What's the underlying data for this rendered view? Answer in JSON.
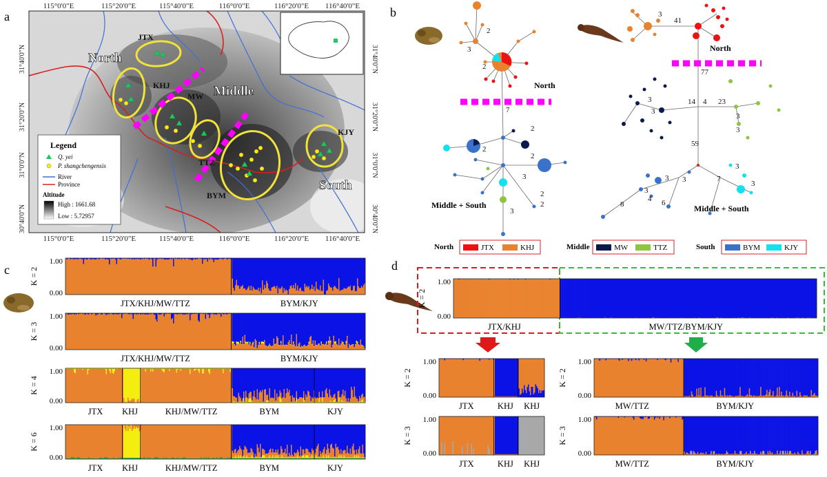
{
  "panels": {
    "a": "a",
    "b": "b",
    "c": "c",
    "d": "d"
  },
  "map": {
    "lon_ticks": [
      "115°0'0\"E",
      "115°20'0\"E",
      "115°40'0\"E",
      "116°0'0\"E",
      "116°20'0\"E",
      "116°40'0\"E"
    ],
    "lat_ticks": [
      "31°40'0\"N",
      "31°20'0\"N",
      "31°0'0\"N",
      "30°40'0\"N"
    ],
    "regions": {
      "north": "North",
      "middle": "Middle",
      "south": "South"
    },
    "sites": [
      "JTX",
      "KHJ",
      "MW",
      "TTZ",
      "BYM",
      "KJY"
    ],
    "legend": {
      "title": "Legend",
      "q_yei": "Q. yei",
      "p_shang": "P. shangchengensis",
      "river": "River",
      "province": "Province",
      "altitude": "Altitude",
      "high": "High : 1661.68",
      "low": "Low : 5.72957"
    },
    "colors": {
      "q_yei": "#22c55e",
      "p_shang": "#ffee00",
      "river": "#3d6fd6",
      "province": "#d62020",
      "ellipse": "#f2e33a",
      "barrier": "#ff00ff"
    }
  },
  "networks": {
    "frog": {
      "north": "North",
      "middle_south": "Middle + South",
      "steps": [
        "7",
        "3",
        "2",
        "2",
        "2",
        "2",
        "3",
        "2",
        "2",
        "3",
        "2"
      ]
    },
    "newt": {
      "north": "North",
      "middle_south": "Middle + South",
      "steps": [
        "41",
        "3",
        "77",
        "14",
        "4",
        "23",
        "3",
        "3",
        "3",
        "3",
        "59",
        "3",
        "3",
        "7",
        "3",
        "3",
        "4",
        "6",
        "3",
        "8"
      ]
    }
  },
  "pop_legend": {
    "groups": [
      {
        "region": "North",
        "items": [
          {
            "name": "JTX",
            "color": "#ee1111"
          },
          {
            "name": "KHJ",
            "color": "#e8822f"
          }
        ]
      },
      {
        "region": "Middle",
        "items": [
          {
            "name": "MW",
            "color": "#0b1a4d"
          },
          {
            "name": "TTZ",
            "color": "#8cc63f"
          }
        ]
      },
      {
        "region": "South",
        "items": [
          {
            "name": "BYM",
            "color": "#3a72c9"
          },
          {
            "name": "KJY",
            "color": "#14e0ee"
          }
        ]
      }
    ]
  },
  "structure_c": [
    {
      "k": "K = 2",
      "labels": [
        "JTX/KHJ/MW/TTZ",
        "BYM/KJY"
      ]
    },
    {
      "k": "K = 3",
      "labels": [
        "JTX/KHJ/MW/TTZ",
        "BYM/KJY"
      ]
    },
    {
      "k": "K = 4",
      "labels": [
        "JTX",
        "KHJ",
        "KHJ/MW/TTZ",
        "BYM",
        "KJY"
      ]
    },
    {
      "k": "K = 6",
      "labels": [
        "JTX",
        "KHJ",
        "KHJ/MW/TTZ",
        "BYM",
        "KJY"
      ]
    }
  ],
  "structure_d": {
    "top": {
      "k": "K = 2",
      "labels": [
        "JTX/KHJ",
        "MW/TTZ/BYM/KJY"
      ]
    },
    "left": [
      {
        "k": "K = 2",
        "labels": [
          "JTX",
          "KHJ",
          "KHJ"
        ]
      },
      {
        "k": "K = 3",
        "labels": [
          "JTX",
          "KHJ",
          "KHJ"
        ]
      }
    ],
    "right": [
      {
        "k": "K = 2",
        "labels": [
          "MW/TTZ",
          "BYM/KJY"
        ]
      },
      {
        "k": "K = 3",
        "labels": [
          "MW/TTZ",
          "BYM/KJY"
        ]
      }
    ]
  },
  "axis": {
    "top": "1.00",
    "bottom": "0.00"
  },
  "cluster_colors": {
    "orange": "#e8822f",
    "blue": "#0a12e6",
    "yellow": "#f4ee10",
    "gray": "#a8a8a8",
    "green": "#2fa84f",
    "red": "#e01818"
  }
}
